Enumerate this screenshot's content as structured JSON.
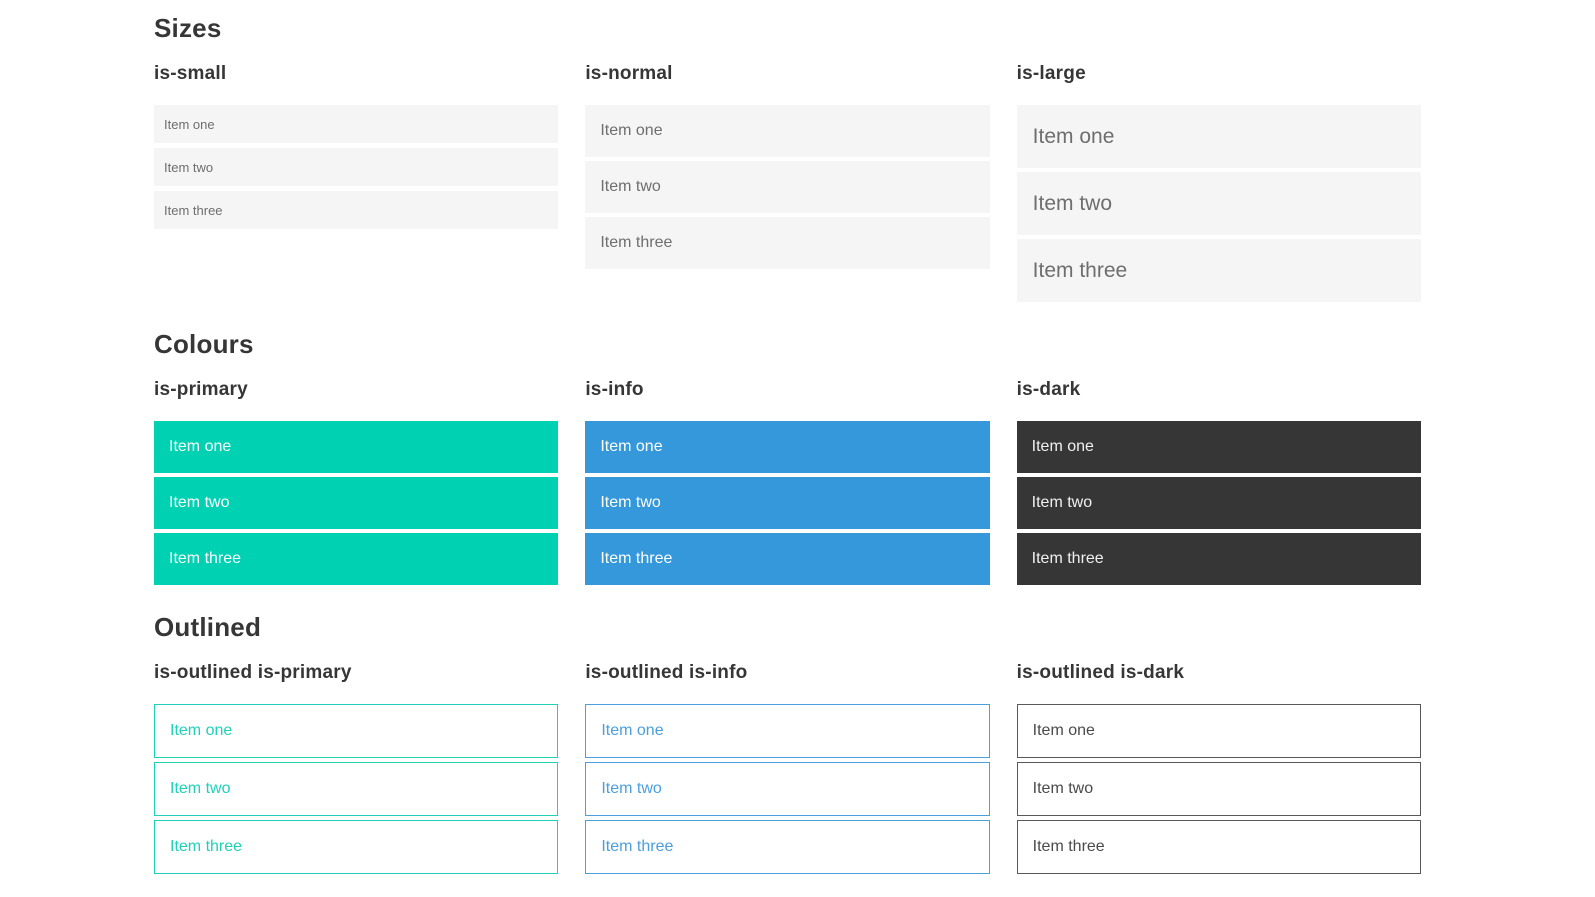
{
  "sections": [
    {
      "title": "Sizes",
      "columns": [
        {
          "heading": "is-small",
          "variant": "size-small",
          "items": [
            "Item one",
            "Item two",
            "Item three"
          ]
        },
        {
          "heading": "is-normal",
          "variant": "size-normal",
          "items": [
            "Item one",
            "Item two",
            "Item three"
          ]
        },
        {
          "heading": "is-large",
          "variant": "size-large",
          "items": [
            "Item one",
            "Item two",
            "Item three"
          ]
        }
      ]
    },
    {
      "title": "Colours",
      "columns": [
        {
          "heading": "is-primary",
          "variant": "color-primary",
          "items": [
            "Item one",
            "Item two",
            "Item three"
          ]
        },
        {
          "heading": "is-info",
          "variant": "color-info",
          "items": [
            "Item one",
            "Item two",
            "Item three"
          ]
        },
        {
          "heading": "is-dark",
          "variant": "color-dark",
          "items": [
            "Item one",
            "Item two",
            "Item three"
          ]
        }
      ]
    },
    {
      "title": "Outlined",
      "columns": [
        {
          "heading": "is-outlined is-primary",
          "variant": "outlined-primary",
          "items": [
            "Item one",
            "Item two",
            "Item three"
          ]
        },
        {
          "heading": "is-outlined is-info",
          "variant": "outlined-info",
          "items": [
            "Item one",
            "Item two",
            "Item three"
          ]
        },
        {
          "heading": "is-outlined is-dark",
          "variant": "outlined-dark",
          "items": [
            "Item one",
            "Item two",
            "Item three"
          ]
        }
      ]
    }
  ],
  "colors": {
    "heading_text": "#363636",
    "light_item_bg": "#f5f5f5",
    "light_item_text": "#6e6e6e",
    "primary": "#00d1b2",
    "info": "#3498db",
    "dark": "#363636",
    "item_text_on_color": "#ffffff",
    "item_text_on_dark": "#f0f0f0",
    "outlined_primary": "#1fd1b8",
    "outlined_info": "#4a9fdd",
    "outlined_dark_border": "#595959",
    "outlined_dark_text": "#4a4a4a"
  }
}
